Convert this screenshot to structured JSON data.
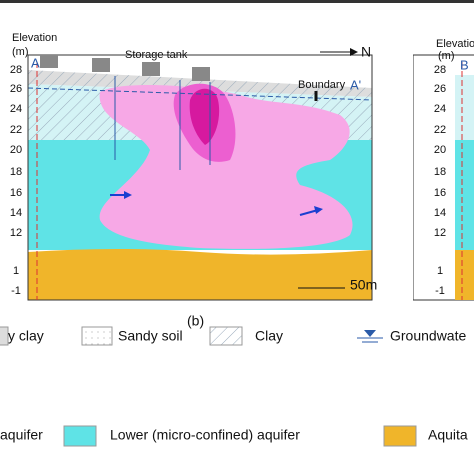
{
  "panel_b": {
    "elevation_label": "Elevation",
    "unit_label": "(m)",
    "elevation_ticks": [
      "28",
      "26",
      "24",
      "22",
      "20",
      "18",
      "16",
      "14",
      "12",
      "1",
      "-1"
    ],
    "storage_tank": "Storage tank",
    "north": "N",
    "section_start": "A",
    "section_end": "A'",
    "boundary": "Boundary",
    "scale": "50m",
    "caption": "(b)"
  },
  "panel_c": {
    "elevation_label": "Elevation",
    "unit_label": "(m)",
    "section_start": "B",
    "elevation_ticks": [
      "28",
      "26",
      "24",
      "22",
      "20",
      "18",
      "16",
      "14",
      "12",
      "1",
      "-1"
    ]
  },
  "legend": {
    "row1": [
      "y clay",
      "Sandy soil",
      "Clay",
      "Groundwate"
    ],
    "row2": [
      "aquifer",
      "Lower (micro-confined) aquifer",
      "Aquita"
    ]
  }
}
